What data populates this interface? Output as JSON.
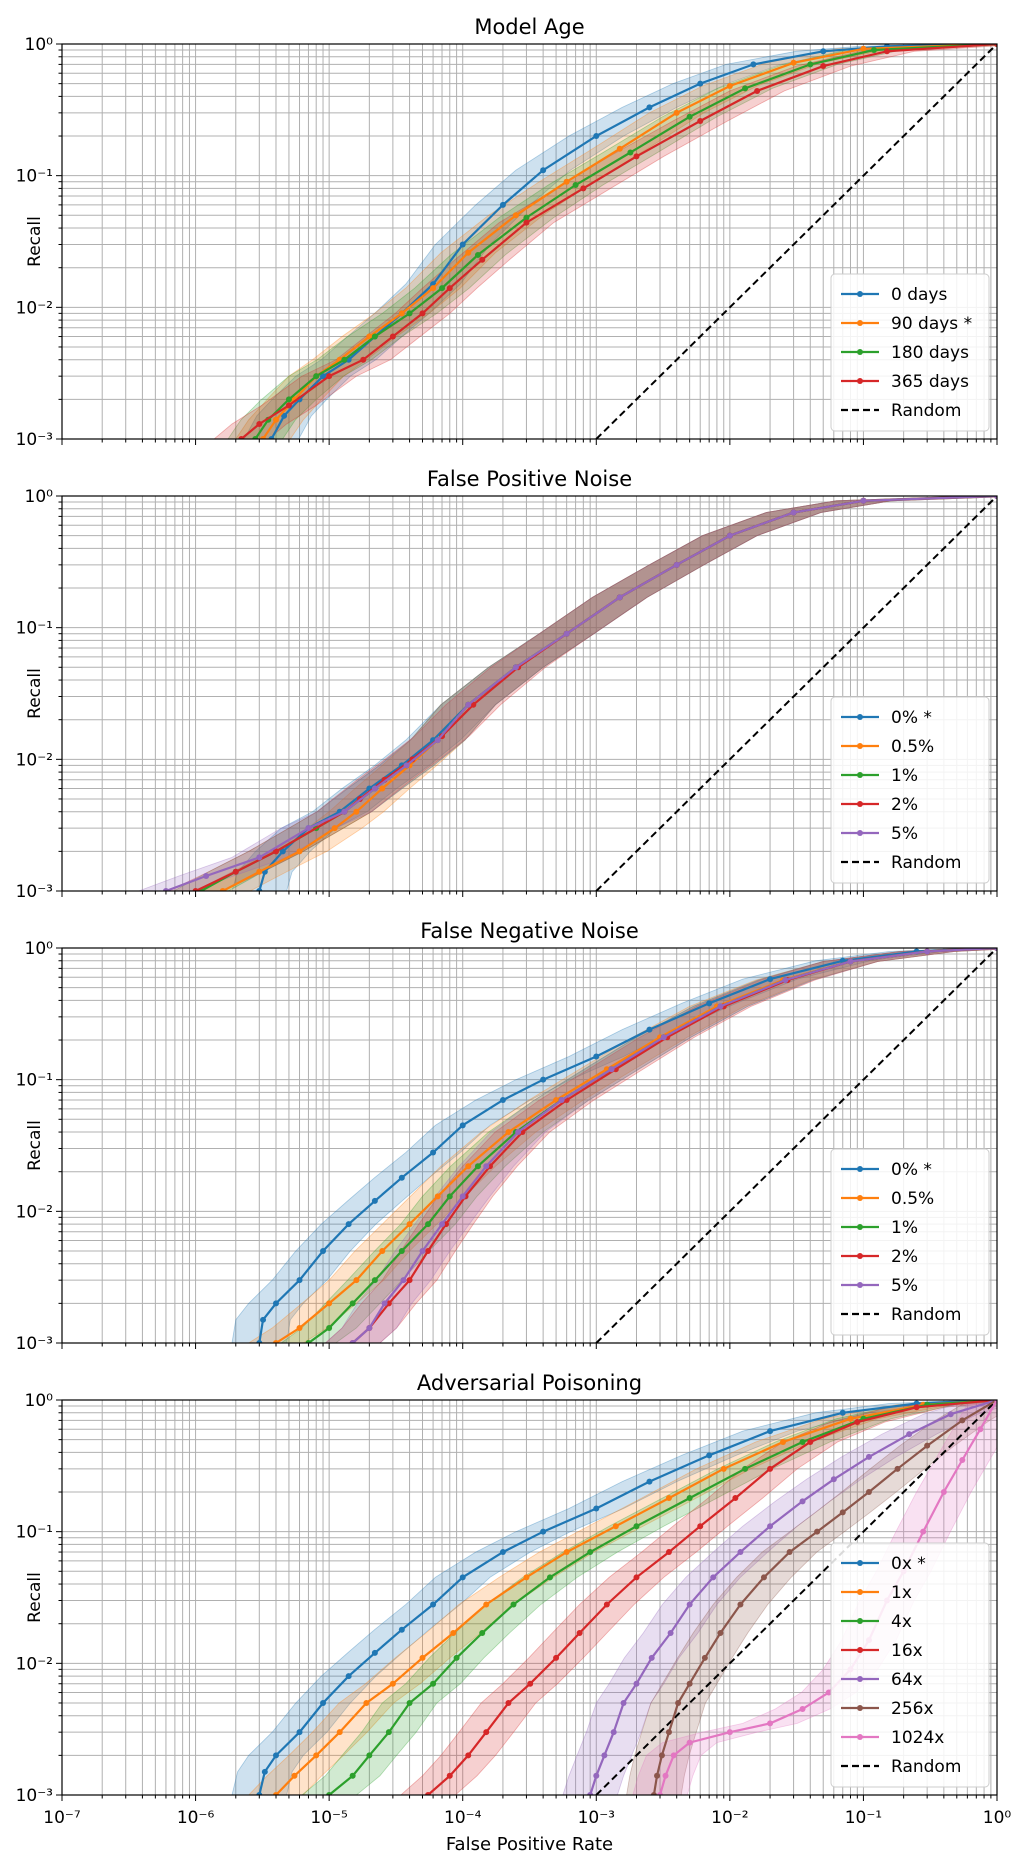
{
  "figure": {
    "xlabel": "False Positive Rate",
    "ylabel": "Recall",
    "xscale": "log",
    "yscale": "log",
    "xlim": [
      1e-07,
      1
    ],
    "ylim": [
      0.001,
      1
    ],
    "x_tick_labels": [
      "10⁻⁷",
      "10⁻⁶",
      "10⁻⁵",
      "10⁻⁴",
      "10⁻³",
      "10⁻²",
      "10⁻¹",
      "10⁰"
    ],
    "y_tick_labels": [
      "10⁻³",
      "10⁻²",
      "10⁻¹",
      "10⁰"
    ],
    "grid": true,
    "legend_position": "lower right",
    "random_label": "Random",
    "colors": {
      "blue": "#1f77b4",
      "orange": "#ff7f0e",
      "green": "#2ca02c",
      "red": "#d62728",
      "purple": "#9467bd",
      "brown": "#8c564b",
      "pink": "#e377c2",
      "random": "#000000",
      "grid": "#b0b0b0"
    }
  },
  "chart_data": [
    {
      "type": "line",
      "title": "Model Age",
      "xlabel": "",
      "ylabel": "Recall",
      "xlim": [
        1e-07,
        1
      ],
      "ylim": [
        0.001,
        1
      ],
      "series": [
        {
          "name": "0 days",
          "color": "#1f77b4",
          "x": [
            3.7e-06,
            4.6e-06,
            6e-06,
            9e-06,
            1.4e-05,
            2.2e-05,
            3.5e-05,
            6e-05,
            0.0001,
            0.0002,
            0.0004,
            0.001,
            0.0025,
            0.006,
            0.015,
            0.05,
            0.15,
            1
          ],
          "y": [
            0.001,
            0.0015,
            0.002,
            0.003,
            0.004,
            0.006,
            0.009,
            0.015,
            0.03,
            0.06,
            0.11,
            0.2,
            0.33,
            0.5,
            0.7,
            0.88,
            0.96,
            1
          ]
        },
        {
          "name": " 90 days *",
          "color": "#ff7f0e",
          "x": [
            3.2e-06,
            4e-06,
            5.5e-06,
            8e-06,
            1.2e-05,
            2e-05,
            3.5e-05,
            6e-05,
            0.00011,
            0.00025,
            0.0006,
            0.0015,
            0.004,
            0.01,
            0.03,
            0.1,
            1
          ],
          "y": [
            0.001,
            0.0014,
            0.002,
            0.003,
            0.004,
            0.006,
            0.009,
            0.014,
            0.026,
            0.05,
            0.09,
            0.16,
            0.3,
            0.48,
            0.72,
            0.92,
            1
          ]
        },
        {
          "name": "180 days",
          "color": "#2ca02c",
          "x": [
            2.8e-06,
            3.5e-06,
            5e-06,
            8e-06,
            1.3e-05,
            2.2e-05,
            4e-05,
            7e-05,
            0.00013,
            0.0003,
            0.0007,
            0.0018,
            0.005,
            0.013,
            0.04,
            0.12,
            1
          ],
          "y": [
            0.001,
            0.0014,
            0.002,
            0.003,
            0.004,
            0.006,
            0.009,
            0.014,
            0.025,
            0.048,
            0.085,
            0.15,
            0.28,
            0.46,
            0.7,
            0.9,
            1
          ]
        },
        {
          "name": "365 days",
          "color": "#d62728",
          "x": [
            2.2e-06,
            3e-06,
            5e-06,
            1e-05,
            1.8e-05,
            3e-05,
            5e-05,
            8e-05,
            0.00014,
            0.0003,
            0.0008,
            0.002,
            0.006,
            0.016,
            0.05,
            0.15,
            1
          ],
          "y": [
            0.001,
            0.0013,
            0.0018,
            0.003,
            0.004,
            0.006,
            0.009,
            0.014,
            0.023,
            0.044,
            0.08,
            0.14,
            0.26,
            0.44,
            0.68,
            0.88,
            1
          ]
        }
      ]
    },
    {
      "type": "line",
      "title": "False Positive Noise",
      "xlabel": "",
      "ylabel": "Recall",
      "xlim": [
        1e-07,
        1
      ],
      "ylim": [
        0.001,
        1
      ],
      "series": [
        {
          "name": "0% *",
          "color": "#1f77b4",
          "x": [
            3e-06,
            3.3e-06,
            4.5e-06,
            7e-06,
            1.2e-05,
            2e-05,
            3.5e-05,
            6e-05,
            0.00011,
            0.00025,
            0.0006,
            0.0015,
            0.004,
            0.01,
            0.03,
            0.1,
            1
          ],
          "y": [
            0.001,
            0.0014,
            0.002,
            0.003,
            0.004,
            0.006,
            0.009,
            0.014,
            0.026,
            0.05,
            0.09,
            0.17,
            0.3,
            0.5,
            0.75,
            0.92,
            1
          ]
        },
        {
          "name": "0.5%",
          "color": "#ff7f0e",
          "x": [
            1.6e-06,
            3e-06,
            6e-06,
            1.1e-05,
            1.6e-05,
            2.5e-05,
            4e-05,
            6.5e-05,
            0.00011,
            0.00025,
            0.0006,
            0.0015,
            0.004,
            0.01,
            0.03,
            0.1,
            1
          ],
          "y": [
            0.001,
            0.0014,
            0.002,
            0.003,
            0.004,
            0.006,
            0.009,
            0.014,
            0.026,
            0.05,
            0.09,
            0.17,
            0.3,
            0.5,
            0.75,
            0.92,
            1
          ]
        },
        {
          "name": "1%",
          "color": "#2ca02c",
          "x": [
            1.1e-06,
            2e-06,
            4e-06,
            8e-06,
            1.3e-05,
            2.2e-05,
            3.8e-05,
            6.5e-05,
            0.00011,
            0.00025,
            0.0006,
            0.0015,
            0.004,
            0.01,
            0.03,
            0.1,
            1
          ],
          "y": [
            0.001,
            0.0014,
            0.002,
            0.003,
            0.004,
            0.006,
            0.009,
            0.014,
            0.026,
            0.05,
            0.09,
            0.17,
            0.3,
            0.5,
            0.75,
            0.92,
            1
          ]
        },
        {
          "name": "2%",
          "color": "#d62728",
          "x": [
            1e-06,
            2e-06,
            4e-06,
            1.3e-05,
            1.7e-05,
            2.6e-05,
            4.2e-05,
            7e-05,
            0.00012,
            0.00026,
            0.0006,
            0.0015,
            0.004,
            0.01,
            0.03,
            0.1,
            1
          ],
          "y": [
            0.001,
            0.0014,
            0.002,
            0.004,
            0.005,
            0.007,
            0.01,
            0.015,
            0.026,
            0.05,
            0.09,
            0.17,
            0.3,
            0.5,
            0.75,
            0.92,
            1
          ]
        },
        {
          "name": "5%",
          "color": "#9467bd",
          "x": [
            6e-07,
            1.2e-06,
            3e-06,
            7e-06,
            1.3e-05,
            2.2e-05,
            3.8e-05,
            6.5e-05,
            0.00011,
            0.00025,
            0.0006,
            0.0015,
            0.004,
            0.01,
            0.03,
            0.1,
            1
          ],
          "y": [
            0.001,
            0.0013,
            0.0018,
            0.003,
            0.004,
            0.006,
            0.009,
            0.014,
            0.026,
            0.05,
            0.09,
            0.17,
            0.3,
            0.5,
            0.75,
            0.92,
            1
          ]
        }
      ]
    },
    {
      "type": "line",
      "title": "False Negative Noise",
      "xlabel": "",
      "ylabel": "Recall",
      "xlim": [
        1e-07,
        1
      ],
      "ylim": [
        0.001,
        1
      ],
      "series": [
        {
          "name": "0% *",
          "color": "#1f77b4",
          "x": [
            3e-06,
            3.2e-06,
            4e-06,
            6e-06,
            9e-06,
            1.4e-05,
            2.2e-05,
            3.5e-05,
            6e-05,
            0.0001,
            0.0002,
            0.0004,
            0.001,
            0.0025,
            0.007,
            0.02,
            0.07,
            0.25,
            1
          ],
          "y": [
            0.001,
            0.0015,
            0.002,
            0.003,
            0.005,
            0.008,
            0.012,
            0.018,
            0.028,
            0.045,
            0.07,
            0.1,
            0.15,
            0.24,
            0.38,
            0.58,
            0.8,
            0.94,
            1
          ]
        },
        {
          "name": "0.5%",
          "color": "#ff7f0e",
          "x": [
            4e-06,
            6e-06,
            1e-05,
            1.6e-05,
            2.5e-05,
            4e-05,
            6.5e-05,
            0.00011,
            0.00022,
            0.0005,
            0.0012,
            0.003,
            0.008,
            0.025,
            0.08,
            0.3,
            1
          ],
          "y": [
            0.001,
            0.0013,
            0.002,
            0.003,
            0.005,
            0.008,
            0.013,
            0.022,
            0.04,
            0.07,
            0.12,
            0.21,
            0.36,
            0.57,
            0.79,
            0.94,
            1
          ]
        },
        {
          "name": "1%",
          "color": "#2ca02c",
          "x": [
            7e-06,
            1e-05,
            1.5e-05,
            2.2e-05,
            3.5e-05,
            5.5e-05,
            8e-05,
            0.00013,
            0.00025,
            0.00055,
            0.0013,
            0.0032,
            0.0085,
            0.026,
            0.08,
            0.3,
            1
          ],
          "y": [
            0.001,
            0.0013,
            0.002,
            0.003,
            0.005,
            0.008,
            0.013,
            0.022,
            0.04,
            0.07,
            0.12,
            0.21,
            0.36,
            0.57,
            0.79,
            0.94,
            1
          ]
        },
        {
          "name": "2%",
          "color": "#d62728",
          "x": [
            1.5e-05,
            2e-05,
            2.8e-05,
            4e-05,
            5.5e-05,
            7.5e-05,
            0.000105,
            0.00016,
            0.00028,
            0.0006,
            0.0014,
            0.0034,
            0.009,
            0.027,
            0.08,
            0.3,
            1
          ],
          "y": [
            0.001,
            0.0013,
            0.002,
            0.003,
            0.005,
            0.008,
            0.013,
            0.022,
            0.04,
            0.07,
            0.12,
            0.21,
            0.36,
            0.57,
            0.79,
            0.94,
            1
          ]
        },
        {
          "name": "5%",
          "color": "#9467bd",
          "x": [
            1.5e-05,
            2e-05,
            2.6e-05,
            3.6e-05,
            5e-05,
            7e-05,
            0.0001,
            0.00015,
            0.00026,
            0.00055,
            0.0013,
            0.0032,
            0.0085,
            0.026,
            0.08,
            0.3,
            1
          ],
          "y": [
            0.001,
            0.0013,
            0.002,
            0.003,
            0.005,
            0.008,
            0.013,
            0.022,
            0.04,
            0.07,
            0.12,
            0.21,
            0.36,
            0.57,
            0.79,
            0.94,
            1
          ]
        }
      ]
    },
    {
      "type": "line",
      "title": "Adversarial Poisoning",
      "xlabel": "False Positive Rate",
      "ylabel": "Recall",
      "xlim": [
        1e-07,
        1
      ],
      "ylim": [
        0.001,
        1
      ],
      "series": [
        {
          "name": "  0x *",
          "color": "#1f77b4",
          "x": [
            3e-06,
            3.3e-06,
            4e-06,
            6e-06,
            9e-06,
            1.4e-05,
            2.2e-05,
            3.5e-05,
            6e-05,
            0.0001,
            0.0002,
            0.0004,
            0.001,
            0.0025,
            0.007,
            0.02,
            0.07,
            0.25,
            1
          ],
          "y": [
            0.001,
            0.0015,
            0.002,
            0.003,
            0.005,
            0.008,
            0.012,
            0.018,
            0.028,
            0.045,
            0.07,
            0.1,
            0.15,
            0.24,
            0.38,
            0.58,
            0.8,
            0.94,
            1
          ]
        },
        {
          "name": "  1x",
          "color": "#ff7f0e",
          "x": [
            4e-06,
            5.5e-06,
            8e-06,
            1.2e-05,
            1.9e-05,
            3e-05,
            5e-05,
            8.5e-05,
            0.00015,
            0.0003,
            0.0006,
            0.0014,
            0.0035,
            0.009,
            0.025,
            0.08,
            0.28,
            1
          ],
          "y": [
            0.001,
            0.0014,
            0.002,
            0.003,
            0.005,
            0.007,
            0.011,
            0.017,
            0.028,
            0.045,
            0.07,
            0.11,
            0.18,
            0.3,
            0.48,
            0.72,
            0.92,
            1
          ]
        },
        {
          "name": "  4x",
          "color": "#2ca02c",
          "x": [
            1e-05,
            1.5e-05,
            2e-05,
            2.8e-05,
            4e-05,
            6e-05,
            9e-05,
            0.00014,
            0.00024,
            0.00045,
            0.0009,
            0.002,
            0.005,
            0.013,
            0.035,
            0.1,
            0.3,
            1
          ],
          "y": [
            0.001,
            0.0014,
            0.002,
            0.003,
            0.005,
            0.007,
            0.011,
            0.017,
            0.028,
            0.045,
            0.07,
            0.11,
            0.18,
            0.3,
            0.48,
            0.72,
            0.92,
            1
          ]
        },
        {
          "name": "  16x",
          "color": "#d62728",
          "x": [
            5.5e-05,
            8e-05,
            0.00011,
            0.00015,
            0.00022,
            0.00032,
            0.0005,
            0.00075,
            0.0012,
            0.002,
            0.0035,
            0.006,
            0.011,
            0.02,
            0.04,
            0.09,
            0.25,
            1
          ],
          "y": [
            0.001,
            0.0014,
            0.002,
            0.003,
            0.005,
            0.007,
            0.011,
            0.017,
            0.028,
            0.045,
            0.07,
            0.11,
            0.18,
            0.3,
            0.48,
            0.68,
            0.88,
            1
          ]
        },
        {
          "name": "  64x",
          "color": "#9467bd",
          "x": [
            0.0009,
            0.001,
            0.00115,
            0.00135,
            0.0016,
            0.002,
            0.0026,
            0.0036,
            0.005,
            0.0075,
            0.012,
            0.02,
            0.035,
            0.06,
            0.11,
            0.22,
            0.45,
            1
          ],
          "y": [
            0.001,
            0.0014,
            0.002,
            0.003,
            0.005,
            0.007,
            0.011,
            0.017,
            0.028,
            0.045,
            0.07,
            0.11,
            0.17,
            0.25,
            0.37,
            0.55,
            0.78,
            1
          ]
        },
        {
          "name": "  256x",
          "color": "#8c564b",
          "x": [
            0.0027,
            0.00285,
            0.0031,
            0.0035,
            0.0041,
            0.005,
            0.0065,
            0.0085,
            0.012,
            0.018,
            0.028,
            0.045,
            0.07,
            0.11,
            0.18,
            0.3,
            0.55,
            1
          ],
          "y": [
            0.001,
            0.0014,
            0.002,
            0.003,
            0.005,
            0.007,
            0.011,
            0.017,
            0.028,
            0.045,
            0.07,
            0.1,
            0.14,
            0.2,
            0.3,
            0.45,
            0.7,
            1
          ]
        },
        {
          "name": "  1024x",
          "color": "#e377c2",
          "x": [
            0.003,
            0.0033,
            0.0038,
            0.005,
            0.01,
            0.02,
            0.035,
            0.055,
            0.08,
            0.11,
            0.15,
            0.2,
            0.28,
            0.4,
            0.55,
            0.75,
            1
          ],
          "y": [
            0.001,
            0.0014,
            0.002,
            0.0025,
            0.003,
            0.0035,
            0.0045,
            0.006,
            0.009,
            0.015,
            0.03,
            0.05,
            0.1,
            0.2,
            0.35,
            0.6,
            1
          ]
        }
      ]
    }
  ]
}
